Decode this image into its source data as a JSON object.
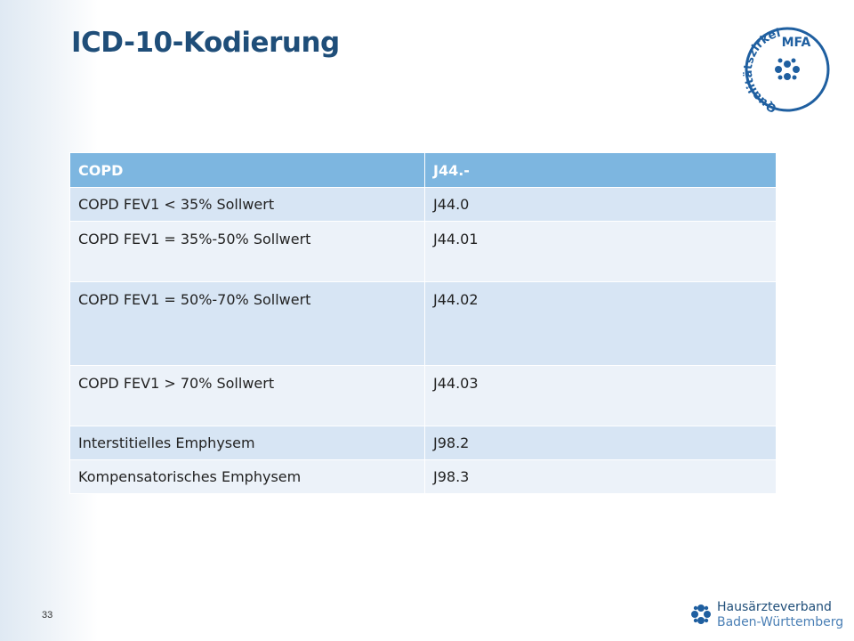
{
  "slide": {
    "title": "ICD-10-Kodierung",
    "page_number": "33"
  },
  "logos": {
    "mfa": {
      "top_text": "MFA",
      "ring_text": "Qualitätszirkel"
    },
    "verband": {
      "line1": "Hausärzteverband",
      "line2": "Baden-Württemberg"
    }
  },
  "table": {
    "header": [
      "COPD",
      "J44.-"
    ],
    "rows": [
      [
        "COPD FEV1 < 35% Sollwert",
        "J44.0"
      ],
      [
        "COPD FEV1 = 35%-50% Sollwert",
        "J44.01"
      ],
      [
        "COPD FEV1 = 50%-70% Sollwert",
        "J44.02"
      ],
      [
        "COPD FEV1 > 70% Sollwert",
        "J44.03"
      ],
      [
        "Interstitielles Emphysem",
        "J98.2"
      ],
      [
        "Kompensatorisches Emphysem",
        "J98.3"
      ]
    ]
  },
  "colors": {
    "title": "#1f4e79",
    "header_bg": "#7db6e0",
    "row_dark": "#d7e5f4",
    "row_light": "#ecf2f9"
  }
}
